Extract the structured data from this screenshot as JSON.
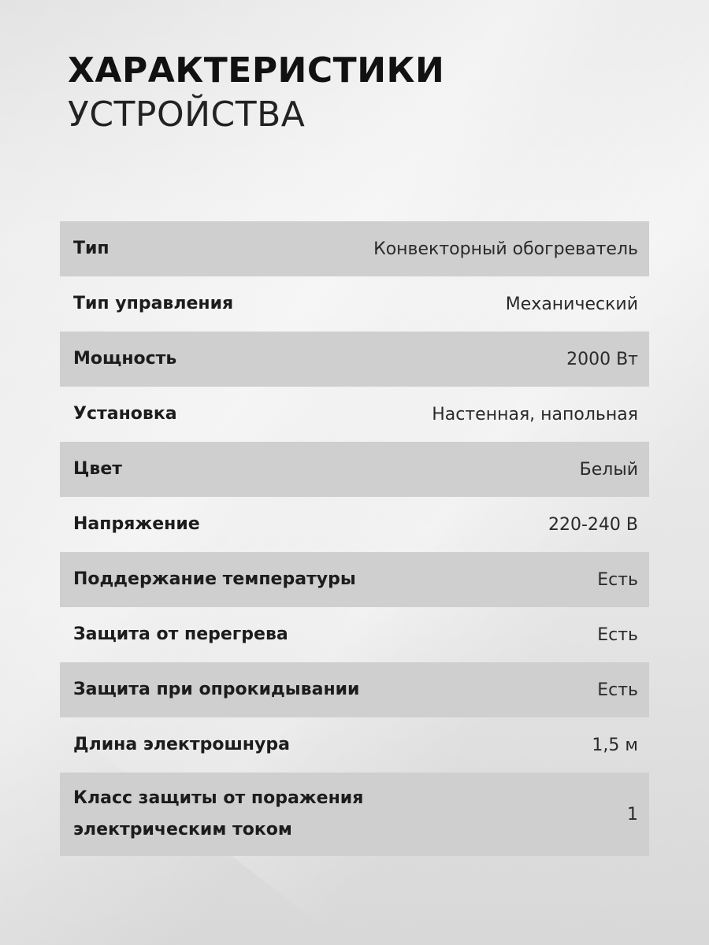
{
  "title": {
    "line1": "ХАРАКТЕРИСТИКИ",
    "line2": "УСТРОЙСТВА"
  },
  "specs": [
    {
      "label": "Тип",
      "value": "Конвекторный обогреватель"
    },
    {
      "label": "Тип управления",
      "value": "Механический"
    },
    {
      "label": "Мощность",
      "value": "2000 Вт"
    },
    {
      "label": "Установка",
      "value": "Настенная, напольная"
    },
    {
      "label": "Цвет",
      "value": "Белый"
    },
    {
      "label": "Напряжение",
      "value": "220-240 В"
    },
    {
      "label": "Поддержание температуры",
      "value": "Есть"
    },
    {
      "label": "Защита от перегрева",
      "value": "Есть"
    },
    {
      "label": "Защита при опрокидывании",
      "value": "Есть"
    },
    {
      "label": "Длина электрошнура",
      "value": "1,5 м"
    },
    {
      "label": "Класс защиты от поражения электрическим током",
      "value": "1"
    }
  ],
  "colors": {
    "row_shade": "#cfcfcf",
    "background": "#e6e6e6",
    "text": "#1c1c1c"
  }
}
